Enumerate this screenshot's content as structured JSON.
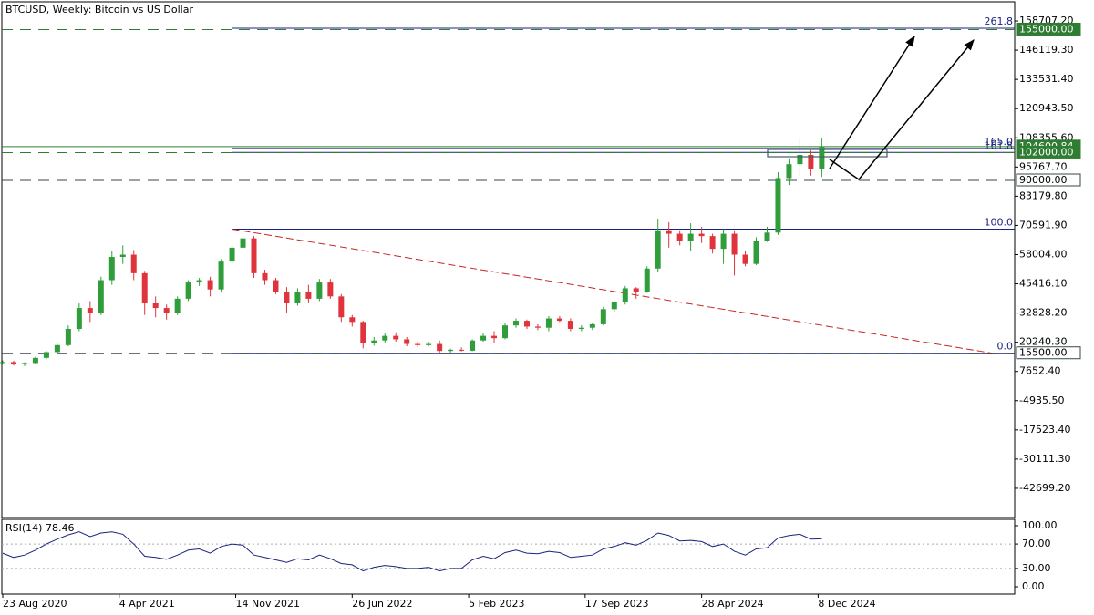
{
  "chart_data": {
    "type": "candlestick",
    "title": "BTCUSD, Weekly:  Bitcoin vs US Dollar",
    "x": [
      0,
      3,
      6,
      9,
      12,
      15,
      18,
      21,
      24,
      27,
      30,
      33,
      36,
      39,
      42,
      45,
      48,
      51,
      54,
      57,
      60,
      63,
      66,
      69,
      72,
      75,
      78,
      81,
      84,
      87,
      90,
      93,
      96,
      99,
      102,
      105,
      108,
      111,
      114,
      117,
      120,
      123,
      126,
      129,
      132,
      135,
      138,
      141,
      144,
      147,
      150,
      153,
      156,
      159,
      162,
      165,
      168,
      171,
      174,
      177,
      180,
      183,
      186,
      189,
      192,
      195,
      198,
      201,
      204,
      207,
      210,
      213,
      216,
      219,
      222,
      225
    ],
    "open": [
      11400,
      11700,
      10700,
      11300,
      13500,
      16000,
      19000,
      26000,
      35000,
      33000,
      47000,
      57000,
      58000,
      50000,
      37000,
      35000,
      33000,
      39000,
      46000,
      47000,
      43000,
      55000,
      61000,
      65000,
      50000,
      47000,
      42000,
      37000,
      42000,
      39000,
      46000,
      40000,
      31000,
      29000,
      20000,
      21000,
      23000,
      21500,
      19500,
      19000,
      19500,
      16500,
      17000,
      16600,
      21000,
      23000,
      22000,
      27500,
      29500,
      27000,
      26500,
      30500,
      29500,
      26000,
      26500,
      28000,
      34500,
      37500,
      43500,
      42000,
      52000,
      68500,
      67000,
      64000,
      67000,
      66000,
      60500,
      67000,
      58000,
      54000,
      64000,
      67500,
      91000,
      97000,
      101000,
      95000
    ],
    "high": [
      12400,
      12300,
      11600,
      14000,
      16500,
      19500,
      27500,
      37000,
      38000,
      48500,
      59500,
      62000,
      60000,
      51000,
      40000,
      36500,
      40000,
      47000,
      48000,
      48500,
      56000,
      62500,
      69000,
      66000,
      51500,
      48000,
      44000,
      43500,
      45000,
      47500,
      47500,
      41000,
      32000,
      29500,
      22500,
      24000,
      24500,
      22500,
      20500,
      20500,
      21000,
      17500,
      18000,
      21500,
      24000,
      25000,
      28500,
      30500,
      30000,
      28000,
      31500,
      31500,
      30500,
      27500,
      28500,
      35500,
      38000,
      44500,
      44000,
      53000,
      73500,
      72000,
      68500,
      71500,
      70000,
      67000,
      69000,
      68500,
      59500,
      65500,
      70000,
      93500,
      99500,
      108000,
      103000,
      108300
    ],
    "low": [
      11000,
      10200,
      10000,
      11000,
      13000,
      15500,
      18500,
      25000,
      29000,
      32000,
      45000,
      54000,
      47000,
      32000,
      31000,
      30000,
      32000,
      38000,
      44500,
      40000,
      42000,
      53500,
      59000,
      48000,
      45000,
      41000,
      33000,
      36000,
      37000,
      38000,
      39000,
      29000,
      27000,
      17600,
      18800,
      20000,
      20500,
      18500,
      18200,
      18500,
      15500,
      15800,
      16300,
      16400,
      20500,
      20000,
      21500,
      26500,
      26000,
      25500,
      25000,
      29000,
      25000,
      25000,
      25500,
      27500,
      33500,
      36500,
      39000,
      41500,
      50500,
      61000,
      62000,
      59500,
      63000,
      58500,
      54000,
      49000,
      53000,
      53500,
      63500,
      66500,
      88000,
      92000,
      92000,
      91500
    ],
    "close": [
      11700,
      10700,
      11300,
      13500,
      16000,
      19000,
      26000,
      35000,
      33000,
      47000,
      57000,
      58000,
      50000,
      37000,
      35000,
      33000,
      39000,
      46000,
      47000,
      43000,
      55000,
      61000,
      65000,
      50000,
      47000,
      42000,
      37000,
      42000,
      39000,
      46000,
      40000,
      31000,
      29000,
      20000,
      21000,
      23000,
      21500,
      19500,
      19000,
      19500,
      16500,
      17000,
      16600,
      21000,
      23000,
      22000,
      27500,
      29500,
      27000,
      26500,
      30500,
      29500,
      26000,
      26500,
      28000,
      34500,
      37500,
      43500,
      42000,
      52000,
      68500,
      67000,
      64000,
      67000,
      66000,
      60500,
      67000,
      58000,
      54000,
      64000,
      67500,
      91000,
      97000,
      101000,
      95000,
      104600
    ],
    "up_color": "#2f9e3a",
    "down_color": "#e0343c",
    "xlim": [
      -0.25,
      278
    ],
    "ylim": [
      -55287,
      166968
    ],
    "xticks": [
      {
        "value": 0,
        "label": "23 Aug 2020"
      },
      {
        "value": 32,
        "label": "4 Apr 2021"
      },
      {
        "value": 64,
        "label": "14 Nov 2021"
      },
      {
        "value": 96,
        "label": "26 Jun 2022"
      },
      {
        "value": 128,
        "label": "5 Feb 2023"
      },
      {
        "value": 160,
        "label": "17 Sep 2023"
      },
      {
        "value": 192,
        "label": "28 Apr 2024"
      },
      {
        "value": 224,
        "label": "8 Dec 2024"
      }
    ],
    "yticks": [
      {
        "value": 158707.2,
        "label": "158707.20"
      },
      {
        "value": 146119.3,
        "label": "146119.30"
      },
      {
        "value": 133531.4,
        "label": "133531.40"
      },
      {
        "value": 120943.5,
        "label": "120943.50"
      },
      {
        "value": 108355.6,
        "label": "108355.60"
      },
      {
        "value": 95767.7,
        "label": "95767.70"
      },
      {
        "value": 83179.8,
        "label": "83179.80"
      },
      {
        "value": 70591.9,
        "label": "70591.90"
      },
      {
        "value": 58004,
        "label": "58004.00"
      },
      {
        "value": 45416.1,
        "label": "45416.10"
      },
      {
        "value": 32828.2,
        "label": "32828.20"
      },
      {
        "value": 20240.3,
        "label": "20240.30"
      },
      {
        "value": 7652.4,
        "label": "7652.40"
      },
      {
        "value": -4935.5,
        "label": "-4935.50"
      },
      {
        "value": -17523.4,
        "label": "-17523.40"
      },
      {
        "value": -30111.3,
        "label": "-30111.30"
      },
      {
        "value": -42699.2,
        "label": "-42699.20"
      }
    ],
    "levels": [
      {
        "value": 155000,
        "label": "155000.00",
        "color": "#2e7d32",
        "highlight": true
      },
      {
        "value": 104600.84,
        "label": "104600.84",
        "color": "#2e7d32",
        "highlight": true,
        "solid": true
      },
      {
        "value": 102000,
        "label": "102000.00",
        "color": "#2e7d32",
        "highlight": true
      },
      {
        "value": 90000,
        "label": "90000.00",
        "color": "#37474f",
        "highlight": false
      },
      {
        "value": 15500,
        "label": "15500.00",
        "color": "#37474f",
        "highlight": false
      }
    ],
    "fib": {
      "color": "#1a237e",
      "trend_color": "#c62828",
      "start": 63,
      "trend_x": [
        63,
        272
      ],
      "trend_y": [
        69000,
        15500
      ],
      "levels": [
        {
          "label": "261.8",
          "value": 155563
        },
        {
          "label": "165.0",
          "value": 103775
        },
        {
          "label": "161.8",
          "value": 102063
        },
        {
          "label": "100.0",
          "value": 69000
        },
        {
          "label": "0.0",
          "value": 15500
        }
      ]
    },
    "rsi": {
      "title": "RSI(14) 78.46",
      "color": "#1a237e",
      "values": [
        55,
        48,
        52,
        60,
        70,
        78,
        85,
        90,
        82,
        88,
        90,
        86,
        70,
        50,
        48,
        45,
        52,
        60,
        62,
        55,
        66,
        70,
        68,
        52,
        48,
        44,
        40,
        46,
        44,
        52,
        46,
        38,
        36,
        26,
        32,
        35,
        33,
        30,
        30,
        32,
        26,
        30,
        30,
        44,
        50,
        46,
        56,
        60,
        55,
        54,
        58,
        56,
        48,
        50,
        52,
        62,
        66,
        72,
        68,
        76,
        88,
        84,
        75,
        76,
        74,
        66,
        70,
        58,
        52,
        62,
        64,
        80,
        84,
        86,
        78,
        78.46
      ],
      "ylim": [
        -11.9,
        110.4
      ],
      "yticks": [
        {
          "value": 100,
          "label": "100.00"
        },
        {
          "value": 70,
          "label": "70.00"
        },
        {
          "value": 30,
          "label": "30.00"
        },
        {
          "value": 0,
          "label": "0.00"
        }
      ],
      "dotted": [
        70,
        30
      ]
    }
  }
}
